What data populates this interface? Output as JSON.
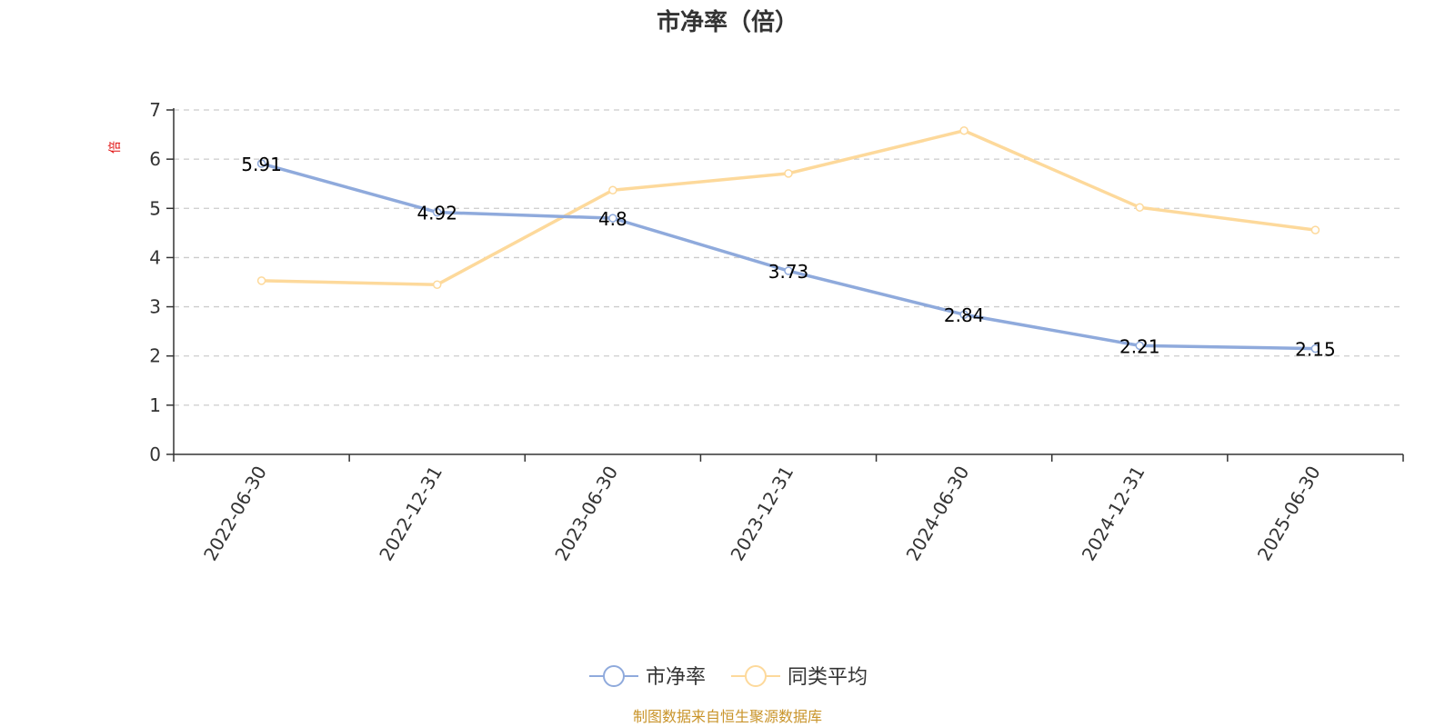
{
  "chart_data": {
    "type": "line",
    "title": "市净率（倍）",
    "ylabel": "倍",
    "categories": [
      "2022-06-30",
      "2022-12-31",
      "2023-06-30",
      "2023-12-31",
      "2024-06-30",
      "2024-12-31",
      "2025-06-30"
    ],
    "ylim": [
      0,
      7
    ],
    "yticks": [
      0,
      1,
      2,
      3,
      4,
      5,
      6,
      7
    ],
    "grid": true,
    "legend_position": "bottom-center",
    "series": [
      {
        "name": "市净率",
        "color": "#8faadc",
        "values": [
          5.91,
          4.92,
          4.8,
          3.73,
          2.84,
          2.21,
          2.15
        ],
        "labels": [
          "5.91",
          "4.92",
          "4.8",
          "3.73",
          "2.84",
          "2.21",
          "2.15"
        ]
      },
      {
        "name": "同类平均",
        "color": "#fdd99b",
        "values": [
          3.53,
          3.45,
          5.37,
          5.71,
          6.58,
          5.02,
          4.56
        ]
      }
    ],
    "source": "制图数据来自恒生聚源数据库"
  }
}
